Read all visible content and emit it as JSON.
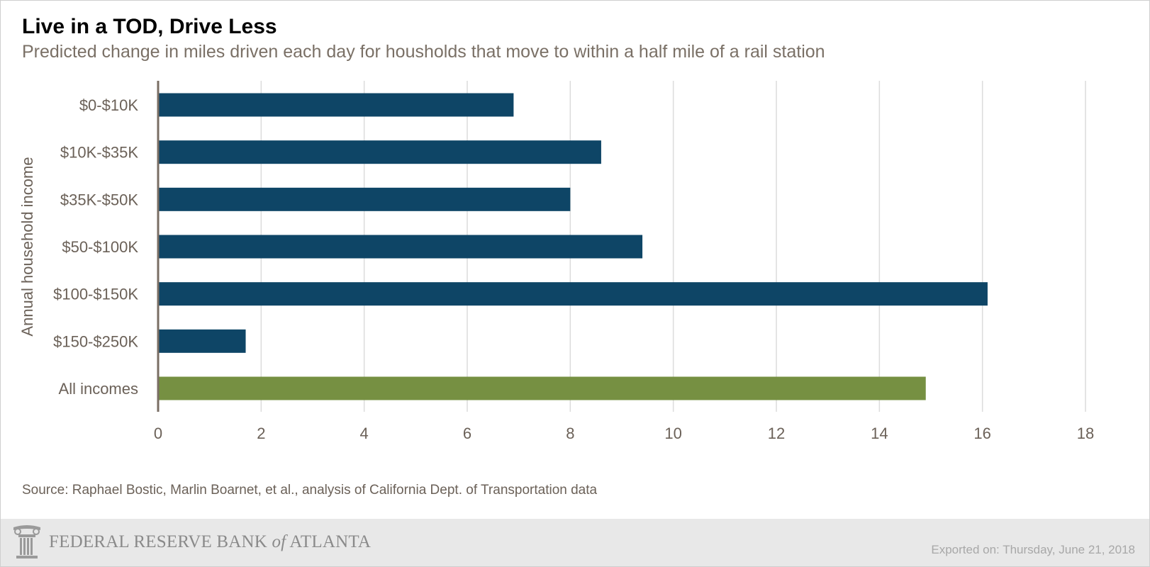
{
  "chart_data": {
    "type": "bar",
    "orientation": "horizontal",
    "title": "Live in a TOD, Drive Less",
    "subtitle": "Predicted change in miles driven each day for housholds that move to within a half mile of a rail station",
    "ylabel": "Annual household income",
    "xlabel": "",
    "categories": [
      "$0-$10K",
      "$10K-$35K",
      "$35K-$50K",
      "$50-$100K",
      "$100-$150K",
      "$150-$250K",
      "All incomes"
    ],
    "values": [
      6.9,
      8.6,
      8.0,
      9.4,
      16.1,
      1.7,
      14.9
    ],
    "bar_colors": [
      "#0e4566",
      "#0e4566",
      "#0e4566",
      "#0e4566",
      "#0e4566",
      "#0e4566",
      "#769042"
    ],
    "xlim": [
      0,
      18
    ],
    "xticks": [
      "0",
      "2",
      "4",
      "6",
      "8",
      "10",
      "12",
      "14",
      "16",
      "18"
    ],
    "grid": true,
    "source": "Source: Raphael Bostic, Marlin Boarnet, et al., analysis of California Dept. of Transportation data"
  },
  "footer": {
    "logo_main": "FEDERAL RESERVE BANK",
    "logo_of": "of",
    "logo_city": "ATLANTA",
    "exported": "Exported on: Thursday, June 21, 2018"
  },
  "colors": {
    "bar": "#0e4566",
    "highlight": "#769042",
    "axis": "#7a6e64",
    "grid": "#dcdcdc",
    "text": "#6b6158"
  },
  "icons": {
    "logo": "column-capital-icon"
  }
}
